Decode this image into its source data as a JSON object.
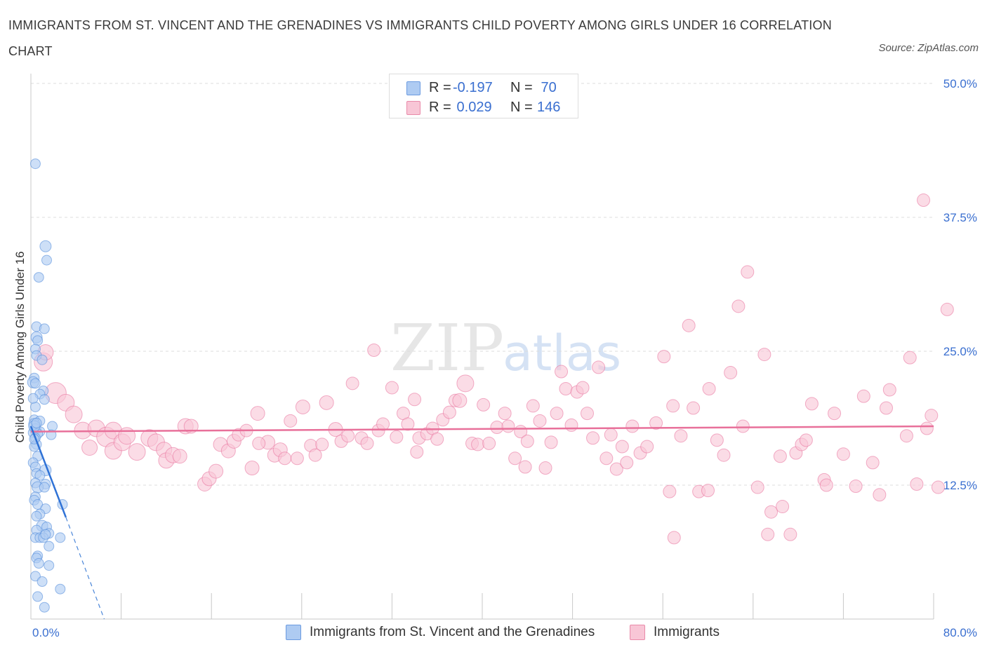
{
  "title": "IMMIGRANTS FROM ST. VINCENT AND THE GRENADINES VS IMMIGRANTS CHILD POVERTY AMONG GIRLS UNDER 16 CORRELATION CHART",
  "source": "Source: ZipAtlas.com",
  "watermark": {
    "zip": "ZIP",
    "atlas": "atlas"
  },
  "legend": {
    "rows": [
      {
        "r_label": "R = ",
        "r_value": "-0.197",
        "n_label": "N = ",
        "n_value": " 70",
        "color": "#aecbf2",
        "border": "#6b9be0"
      },
      {
        "r_label": "R = ",
        "r_value": " 0.029",
        "n_label": "N = ",
        "n_value": "146",
        "color": "#f8c6d6",
        "border": "#e98aa9"
      }
    ]
  },
  "bottom_legend": [
    "Immigrants from St. Vincent and the Grenadines",
    "Immigrants"
  ],
  "chart_data": {
    "type": "scatter",
    "ylabel": "Child Poverty Among Girls Under 16",
    "xlabel": "",
    "x_tick_labels": [
      "0.0%",
      "80.0%"
    ],
    "y_tick_labels": [
      "12.5%",
      "25.0%",
      "37.5%",
      "50.0%"
    ],
    "xlim": [
      0,
      80
    ],
    "ylim": [
      0,
      50
    ],
    "grid": true,
    "series": [
      {
        "name": "Immigrants from St. Vincent and the Grenadines",
        "color": "#4a86d8",
        "fill": "#aecbf2",
        "trend": {
          "x0": 0,
          "y0": 18.0,
          "x1": 3.1,
          "y1": 9.5,
          "dash_to_x": 6.5,
          "dash_to_y": 0.0
        },
        "points": [
          [
            0.4,
            42.5,
            7
          ],
          [
            1.3,
            34.8,
            8
          ],
          [
            1.4,
            33.5,
            7
          ],
          [
            0.7,
            31.9,
            7
          ],
          [
            0.5,
            27.3,
            7
          ],
          [
            1.2,
            27.1,
            7
          ],
          [
            0.5,
            26.3,
            8
          ],
          [
            0.6,
            26.0,
            7
          ],
          [
            0.4,
            25.2,
            7
          ],
          [
            0.5,
            24.6,
            7
          ],
          [
            1.0,
            24.2,
            7
          ],
          [
            0.3,
            22.5,
            7
          ],
          [
            0.2,
            22.1,
            8
          ],
          [
            0.4,
            22.0,
            7
          ],
          [
            1.1,
            21.3,
            7
          ],
          [
            0.8,
            21.0,
            7
          ],
          [
            1.2,
            20.5,
            7
          ],
          [
            0.4,
            19.8,
            7
          ],
          [
            0.3,
            18.6,
            7
          ],
          [
            0.8,
            18.5,
            7
          ],
          [
            0.3,
            18.2,
            8
          ],
          [
            1.9,
            18.0,
            7
          ],
          [
            0.4,
            17.7,
            8
          ],
          [
            0.8,
            17.5,
            7
          ],
          [
            0.2,
            17.4,
            7
          ],
          [
            0.6,
            17.3,
            7
          ],
          [
            1.8,
            17.2,
            7
          ],
          [
            0.4,
            16.9,
            7
          ],
          [
            0.5,
            16.3,
            7
          ],
          [
            0.3,
            16.1,
            7
          ],
          [
            0.6,
            15.2,
            7
          ],
          [
            0.2,
            14.6,
            7
          ],
          [
            0.4,
            14.2,
            7
          ],
          [
            1.3,
            13.9,
            8
          ],
          [
            0.5,
            13.6,
            7
          ],
          [
            0.8,
            13.4,
            7
          ],
          [
            0.4,
            12.7,
            7
          ],
          [
            1.3,
            12.6,
            7
          ],
          [
            0.6,
            12.3,
            8
          ],
          [
            1.2,
            12.3,
            7
          ],
          [
            0.4,
            11.4,
            7
          ],
          [
            0.3,
            11.1,
            7
          ],
          [
            0.6,
            10.7,
            7
          ],
          [
            2.8,
            10.7,
            7
          ],
          [
            1.3,
            10.3,
            7
          ],
          [
            0.8,
            9.8,
            7
          ],
          [
            0.5,
            9.6,
            7
          ],
          [
            1.0,
            8.7,
            8
          ],
          [
            1.4,
            8.6,
            7
          ],
          [
            0.5,
            8.3,
            7
          ],
          [
            0.4,
            7.6,
            7
          ],
          [
            1.6,
            8.0,
            7
          ],
          [
            2.6,
            7.6,
            7
          ],
          [
            0.8,
            7.6,
            7
          ],
          [
            1.1,
            7.6,
            7
          ],
          [
            1.3,
            7.9,
            7
          ],
          [
            1.6,
            6.8,
            7
          ],
          [
            0.6,
            5.9,
            7
          ],
          [
            0.5,
            5.7,
            7
          ],
          [
            0.7,
            5.2,
            7
          ],
          [
            1.6,
            5.0,
            7
          ],
          [
            0.4,
            4.0,
            7
          ],
          [
            1.0,
            3.5,
            7
          ],
          [
            2.6,
            2.8,
            7
          ],
          [
            0.6,
            2.1,
            7
          ],
          [
            1.2,
            1.1,
            7
          ],
          [
            0.3,
            18.0,
            8
          ],
          [
            0.5,
            18.3,
            7
          ],
          [
            0.2,
            20.6,
            7
          ],
          [
            0.3,
            16.8,
            7
          ]
        ]
      },
      {
        "name": "Immigrants",
        "color": "#e8709a",
        "fill": "#f8c6d6",
        "trend": {
          "x0": 0,
          "y0": 17.5,
          "x1": 80,
          "y1": 18.0
        },
        "points": [
          [
            1.1,
            24.0,
            13
          ],
          [
            1.3,
            24.9,
            11
          ],
          [
            2.2,
            21.1,
            15
          ],
          [
            3.1,
            20.2,
            12
          ],
          [
            3.8,
            19.1,
            12
          ],
          [
            4.6,
            17.6,
            12
          ],
          [
            5.2,
            16.0,
            11
          ],
          [
            5.8,
            17.8,
            12
          ],
          [
            6.7,
            17.0,
            14
          ],
          [
            7.3,
            17.6,
            12
          ],
          [
            7.3,
            15.7,
            12
          ],
          [
            8.1,
            16.5,
            12
          ],
          [
            8.5,
            17.1,
            12
          ],
          [
            9.4,
            15.6,
            12
          ],
          [
            10.5,
            16.9,
            12
          ],
          [
            11.1,
            16.5,
            12
          ],
          [
            11.8,
            15.8,
            11
          ],
          [
            12.0,
            14.8,
            11
          ],
          [
            12.6,
            15.3,
            11
          ],
          [
            13.2,
            15.2,
            10
          ],
          [
            13.7,
            18.0,
            11
          ],
          [
            14.2,
            18.0,
            10
          ],
          [
            15.4,
            12.6,
            10
          ],
          [
            15.8,
            13.1,
            10
          ],
          [
            16.4,
            13.8,
            10
          ],
          [
            16.8,
            16.3,
            10
          ],
          [
            17.5,
            15.7,
            10
          ],
          [
            18.0,
            16.6,
            10
          ],
          [
            18.4,
            17.2,
            9
          ],
          [
            19.1,
            17.6,
            9
          ],
          [
            19.6,
            14.1,
            10
          ],
          [
            20.1,
            19.2,
            10
          ],
          [
            21.0,
            16.5,
            10
          ],
          [
            21.6,
            15.3,
            10
          ],
          [
            22.1,
            15.8,
            10
          ],
          [
            22.5,
            15.0,
            9
          ],
          [
            23.0,
            18.5,
            9
          ],
          [
            23.6,
            15.0,
            9
          ],
          [
            24.1,
            19.8,
            10
          ],
          [
            24.8,
            16.2,
            9
          ],
          [
            25.2,
            15.3,
            9
          ],
          [
            25.8,
            16.3,
            9
          ],
          [
            26.2,
            20.2,
            10
          ],
          [
            27.0,
            17.7,
            10
          ],
          [
            27.5,
            16.6,
            9
          ],
          [
            28.1,
            17.1,
            9
          ],
          [
            28.5,
            22.0,
            9
          ],
          [
            29.3,
            16.9,
            9
          ],
          [
            29.8,
            16.4,
            9
          ],
          [
            30.4,
            25.1,
            9
          ],
          [
            30.8,
            17.6,
            9
          ],
          [
            31.2,
            18.2,
            9
          ],
          [
            32.0,
            21.6,
            9
          ],
          [
            32.4,
            17.0,
            9
          ],
          [
            33.0,
            19.2,
            9
          ],
          [
            33.4,
            18.2,
            9
          ],
          [
            34.0,
            20.5,
            9
          ],
          [
            34.4,
            16.9,
            9
          ],
          [
            35.1,
            17.3,
            9
          ],
          [
            35.6,
            17.8,
            9
          ],
          [
            36.0,
            16.8,
            9
          ],
          [
            36.5,
            18.6,
            9
          ],
          [
            37.1,
            19.3,
            9
          ],
          [
            37.6,
            20.4,
            9
          ],
          [
            38.0,
            20.4,
            10
          ],
          [
            38.5,
            22.0,
            12
          ],
          [
            39.1,
            16.4,
            9
          ],
          [
            39.6,
            16.3,
            9
          ],
          [
            40.1,
            20.0,
            9
          ],
          [
            40.6,
            16.4,
            9
          ],
          [
            41.3,
            17.9,
            9
          ],
          [
            42.0,
            19.2,
            9
          ],
          [
            42.3,
            18.0,
            9
          ],
          [
            42.9,
            15.0,
            9
          ],
          [
            43.4,
            17.5,
            9
          ],
          [
            43.8,
            14.2,
            9
          ],
          [
            44.5,
            19.9,
            9
          ],
          [
            45.1,
            18.5,
            9
          ],
          [
            45.6,
            14.1,
            9
          ],
          [
            46.1,
            16.5,
            9
          ],
          [
            46.6,
            19.2,
            9
          ],
          [
            47.0,
            23.1,
            9
          ],
          [
            47.4,
            21.5,
            9
          ],
          [
            47.9,
            18.1,
            9
          ],
          [
            48.4,
            21.2,
            9
          ],
          [
            48.9,
            21.6,
            9
          ],
          [
            49.3,
            19.2,
            9
          ],
          [
            49.8,
            16.9,
            9
          ],
          [
            50.3,
            23.5,
            9
          ],
          [
            51.0,
            15.0,
            9
          ],
          [
            51.4,
            17.2,
            9
          ],
          [
            51.9,
            14.0,
            9
          ],
          [
            52.4,
            16.1,
            9
          ],
          [
            52.8,
            14.6,
            9
          ],
          [
            53.3,
            18.0,
            9
          ],
          [
            54.0,
            15.5,
            9
          ],
          [
            54.6,
            16.1,
            9
          ],
          [
            55.4,
            18.3,
            9
          ],
          [
            56.1,
            24.5,
            9
          ],
          [
            56.6,
            11.9,
            9
          ],
          [
            57.0,
            7.6,
            9
          ],
          [
            57.6,
            17.1,
            9
          ],
          [
            58.3,
            27.4,
            9
          ],
          [
            58.7,
            19.7,
            9
          ],
          [
            59.2,
            11.9,
            9
          ],
          [
            60.1,
            21.5,
            9
          ],
          [
            60.8,
            16.7,
            9
          ],
          [
            61.4,
            15.3,
            9
          ],
          [
            62.0,
            23.0,
            9
          ],
          [
            62.7,
            29.2,
            9
          ],
          [
            63.1,
            18.0,
            9
          ],
          [
            63.5,
            32.4,
            9
          ],
          [
            64.4,
            12.3,
            9
          ],
          [
            65.0,
            24.7,
            9
          ],
          [
            65.3,
            7.9,
            9
          ],
          [
            65.6,
            10.0,
            9
          ],
          [
            66.6,
            10.5,
            9
          ],
          [
            67.3,
            7.9,
            9
          ],
          [
            67.8,
            15.5,
            9
          ],
          [
            68.3,
            16.3,
            9
          ],
          [
            68.7,
            16.7,
            9
          ],
          [
            69.2,
            20.1,
            9
          ],
          [
            70.3,
            13.0,
            9
          ],
          [
            70.5,
            12.5,
            9
          ],
          [
            71.2,
            19.2,
            9
          ],
          [
            72.0,
            15.4,
            9
          ],
          [
            73.8,
            20.8,
            9
          ],
          [
            74.6,
            14.6,
            9
          ],
          [
            75.2,
            11.6,
            9
          ],
          [
            75.8,
            19.7,
            9
          ],
          [
            76.1,
            21.4,
            9
          ],
          [
            77.6,
            17.1,
            9
          ],
          [
            77.9,
            24.4,
            9
          ],
          [
            78.5,
            12.6,
            9
          ],
          [
            79.1,
            39.1,
            9
          ],
          [
            79.4,
            17.8,
            9
          ],
          [
            79.8,
            19.0,
            9
          ],
          [
            80.4,
            12.3,
            9
          ],
          [
            81.2,
            28.9,
            9
          ],
          [
            73.1,
            12.4,
            9
          ],
          [
            56.9,
            19.9,
            9
          ],
          [
            20.2,
            16.4,
            9
          ],
          [
            34.2,
            15.6,
            9
          ],
          [
            44.0,
            16.6,
            9
          ],
          [
            60.0,
            12.0,
            9
          ],
          [
            66.4,
            15.2,
            9
          ]
        ]
      }
    ]
  }
}
